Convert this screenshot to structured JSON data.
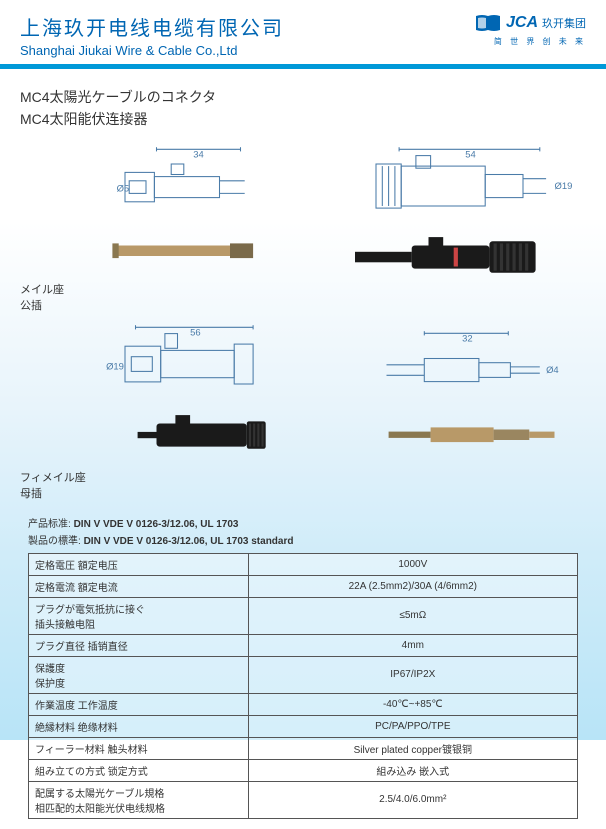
{
  "header": {
    "company_cn": "上海玖开电线电缆有限公司",
    "company_en": "Shanghai Jiukai Wire & Cable Co.,Ltd",
    "logo_text": "JCA",
    "logo_cn": "玖开集团",
    "tagline": "简 世 界  创 未 来"
  },
  "title": {
    "jp": "MC4太陽光ケーブルのコネクタ",
    "cn": "MC4太阳能伏连接器"
  },
  "diagrams": {
    "male": {
      "dim1": "34",
      "dim2": "54",
      "diam1": "Ø5",
      "diam2": "Ø19",
      "label_jp": "メイル座",
      "label_cn": "公插"
    },
    "female": {
      "dim1": "56",
      "dim2": "32",
      "diam1": "Ø19",
      "diam2": "Ø4",
      "label_jp": "フィメイル座",
      "label_cn": "母插"
    }
  },
  "standards": {
    "line1_label": "产品标准:",
    "line1_value": "DIN V VDE V 0126-3/12.06, UL 1703",
    "line2_label": "製品の標準:",
    "line2_value": "DIN V VDE V 0126-3/12.06, UL 1703 standard"
  },
  "table": {
    "rows": [
      {
        "l": "定格電圧  額定电压",
        "v": "1000V"
      },
      {
        "l": "定格電流  額定电流",
        "v": "22A (2.5mm2)/30A (4/6mm2)"
      },
      {
        "l": "プラグが電気抵抗に接ぐ\n插头接触电阻",
        "v": "≤5mΩ"
      },
      {
        "l": "プラグ直径  插销直径",
        "v": "4mm"
      },
      {
        "l": "保護度\n保护度",
        "v": "IP67/IP2X"
      },
      {
        "l": "作業温度  工作温度",
        "v": "-40℃~+85℃"
      },
      {
        "l": "絶縁材料  绝缘材料",
        "v": "PC/PA/PPO/TPE"
      },
      {
        "l": "フィーラー材料  触头材料",
        "v": "Silver plated copper镀银铜"
      },
      {
        "l": "組み立ての方式  锁定方式",
        "v": "組み込み  嵌入式"
      },
      {
        "l": "配属する太陽光ケーブル規格\n相匹配的太阳能光伏电线规格",
        "v": "2.5/4.0/6.0mm²"
      }
    ]
  },
  "colors": {
    "brand_blue": "#0066b3",
    "divider_blue": "#0099d8",
    "diagram_line": "#4a7ba8",
    "connector_body": "#1a1a1a",
    "pin_gold": "#b89968"
  }
}
